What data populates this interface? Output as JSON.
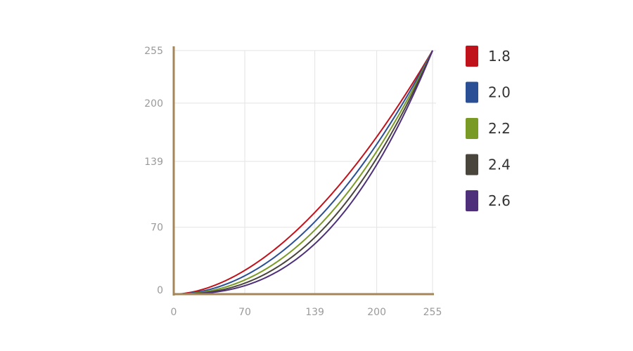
{
  "chart_data": {
    "type": "line",
    "title": "",
    "xlabel": "",
    "ylabel": "",
    "xlim": [
      0,
      255
    ],
    "ylim": [
      0,
      255
    ],
    "x_ticks": [
      "0",
      "70",
      "139",
      "200",
      "255"
    ],
    "y_ticks": [
      "0",
      "70",
      "139",
      "200",
      "255"
    ],
    "x_tick_values": [
      0,
      70,
      139,
      200,
      255
    ],
    "y_tick_values": [
      0,
      70,
      139,
      200,
      255
    ],
    "grid": true,
    "legend_position": "right",
    "axis_color": "#a4865a",
    "grid_color": "#e3e3e3",
    "formula": "y = 255 * (x / 255) ^ gamma",
    "series": [
      {
        "name": "1.8",
        "gamma": 1.8,
        "color": "#c0121b"
      },
      {
        "name": "2.0",
        "gamma": 2.0,
        "color": "#2b4f95"
      },
      {
        "name": "2.2",
        "gamma": 2.2,
        "color": "#7a9a26"
      },
      {
        "name": "2.4",
        "gamma": 2.4,
        "color": "#4a453c"
      },
      {
        "name": "2.6",
        "gamma": 2.6,
        "color": "#4e2f79"
      }
    ]
  }
}
